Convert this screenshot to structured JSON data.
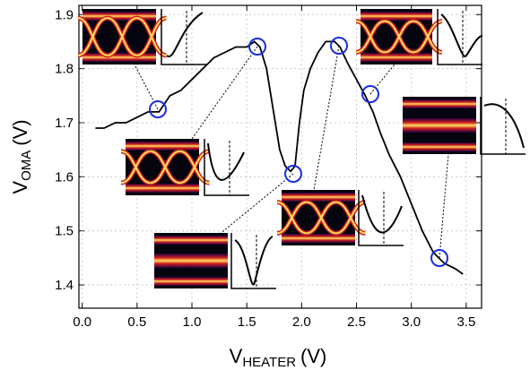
{
  "chart_data": {
    "type": "line",
    "x_label": {
      "main": "V",
      "sub": "HEATER",
      "unit": "(V)"
    },
    "y_label": {
      "main": "V",
      "sub": "OMA",
      "unit": "(V)"
    },
    "x": [
      0.12,
      0.2,
      0.3,
      0.4,
      0.5,
      0.6,
      0.7,
      0.8,
      0.9,
      1.0,
      1.1,
      1.2,
      1.3,
      1.4,
      1.5,
      1.57,
      1.62,
      1.68,
      1.72,
      1.76,
      1.8,
      1.85,
      1.9,
      1.94,
      1.98,
      2.02,
      2.08,
      2.15,
      2.22,
      2.3,
      2.35,
      2.42,
      2.5,
      2.58,
      2.65,
      2.72,
      2.8,
      2.9,
      3.0,
      3.1,
      3.2,
      3.25,
      3.3,
      3.4,
      3.47
    ],
    "values": [
      1.69,
      1.69,
      1.7,
      1.7,
      1.71,
      1.72,
      1.72,
      1.75,
      1.76,
      1.78,
      1.8,
      1.82,
      1.83,
      1.84,
      1.84,
      1.85,
      1.84,
      1.8,
      1.75,
      1.7,
      1.65,
      1.62,
      1.61,
      1.62,
      1.7,
      1.76,
      1.8,
      1.83,
      1.85,
      1.85,
      1.84,
      1.81,
      1.78,
      1.75,
      1.72,
      1.68,
      1.64,
      1.6,
      1.55,
      1.5,
      1.46,
      1.45,
      1.44,
      1.43,
      1.42
    ],
    "color": "#000000",
    "xlim": [
      -0.03,
      3.64
    ],
    "ylim": [
      1.357,
      1.917
    ],
    "xticks": [
      {
        "value": 0,
        "label": "0.0"
      },
      0.5,
      {
        "value": 1,
        "label": "1.0"
      },
      1.5,
      {
        "value": 2,
        "label": "2.0"
      },
      2.5,
      {
        "value": 3,
        "label": "3.0"
      },
      3.5
    ],
    "yticks": [
      1.4,
      1.5,
      1.6,
      1.7,
      1.8,
      1.9
    ],
    "grid": true
  }
}
